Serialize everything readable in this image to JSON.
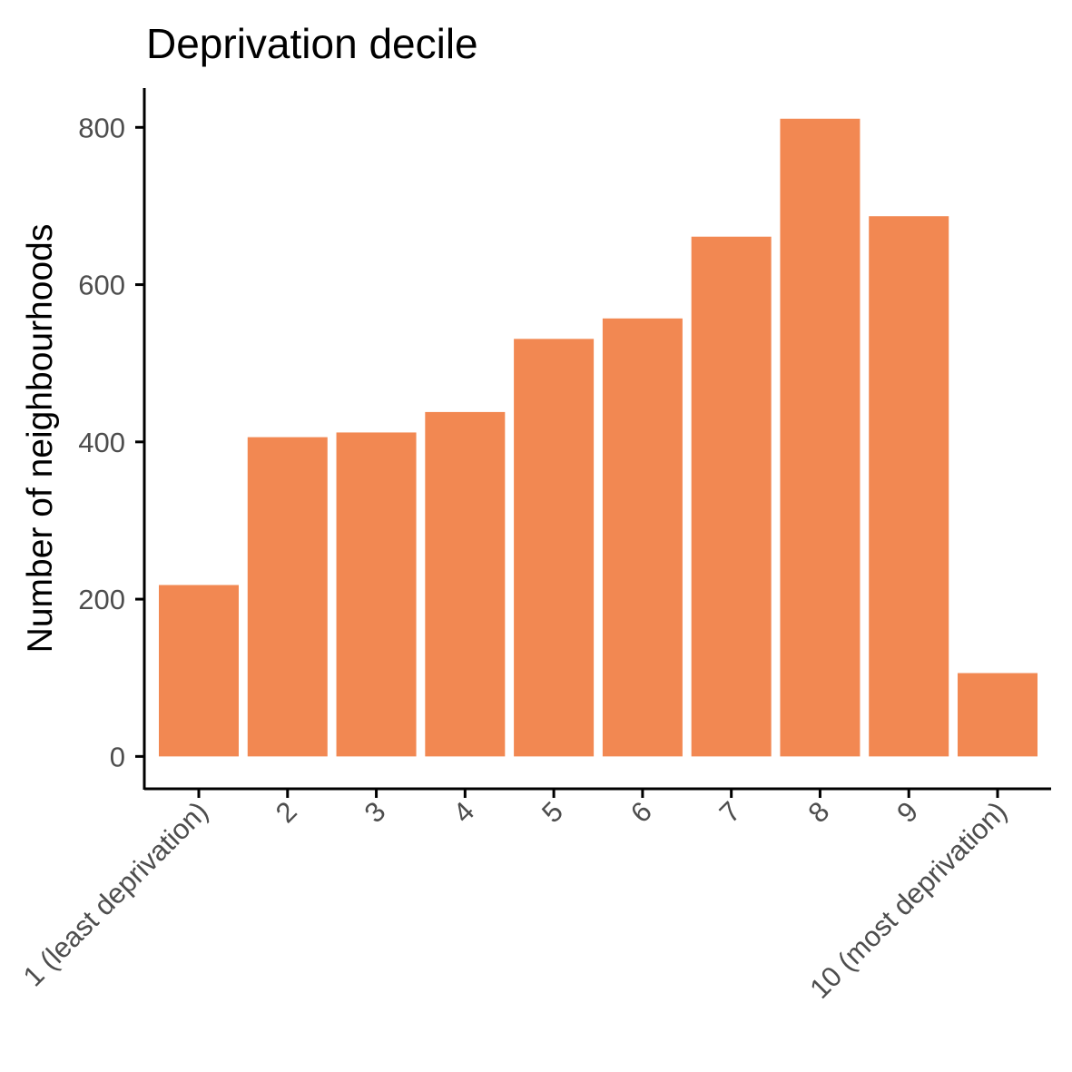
{
  "chart_data": {
    "type": "bar",
    "title": "Deprivation decile",
    "xlabel": "",
    "ylabel": "Number of neighbourhoods",
    "categories": [
      "1 (least deprivation)",
      "2",
      "3",
      "4",
      "5",
      "6",
      "7",
      "8",
      "9",
      "10 (most deprivation)"
    ],
    "values": [
      218,
      406,
      412,
      438,
      531,
      557,
      661,
      811,
      687,
      106
    ],
    "ylim": [
      -40,
      850
    ],
    "yticks": [
      0,
      200,
      400,
      600,
      800
    ],
    "grid": false,
    "legend": "none",
    "bar_color": "#F28852"
  }
}
